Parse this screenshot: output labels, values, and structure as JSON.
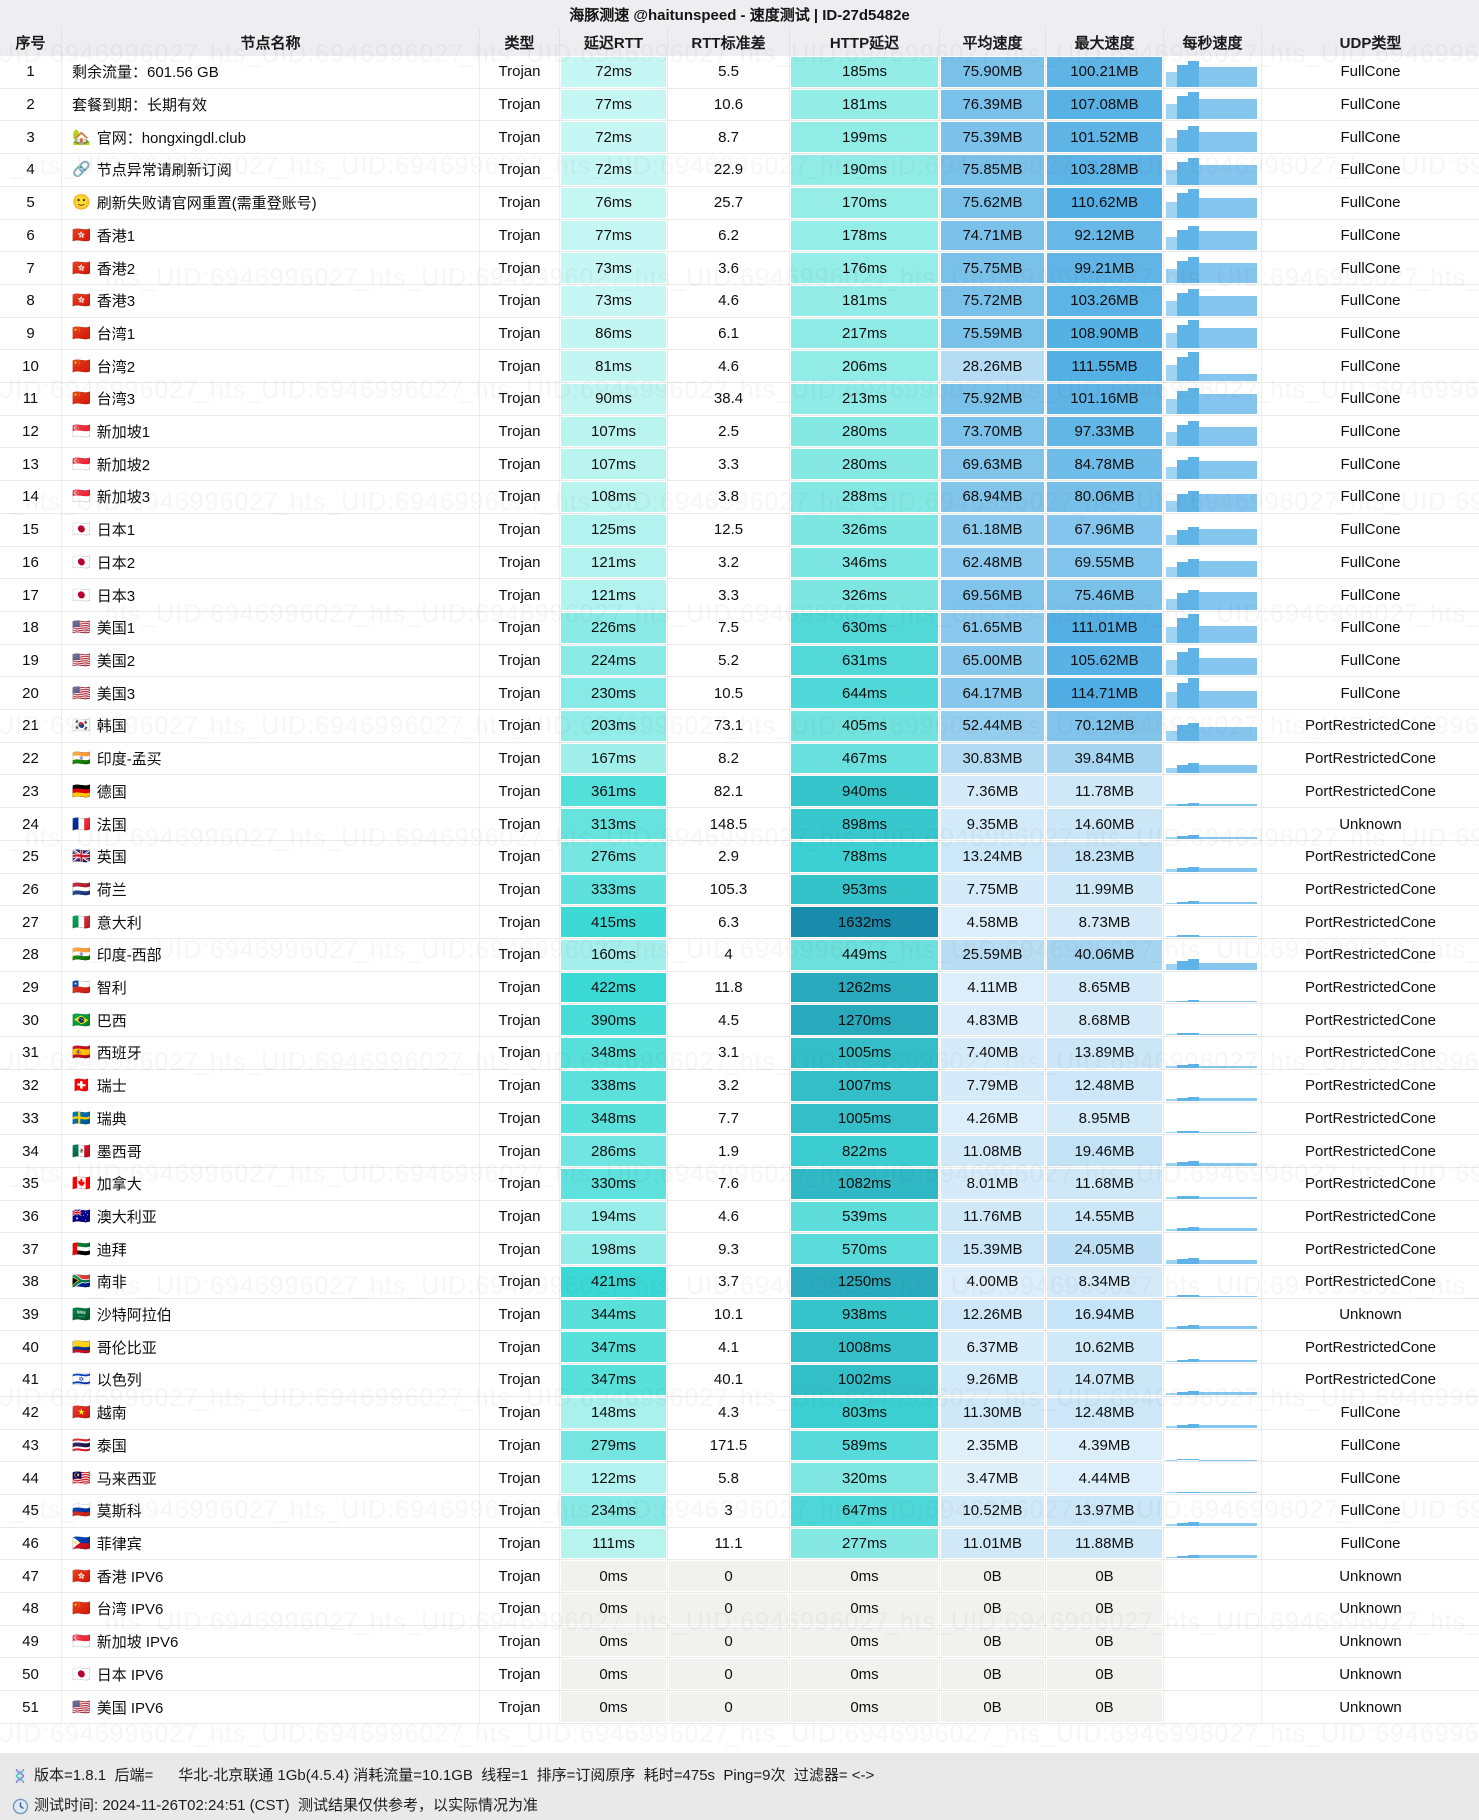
{
  "title": "海豚测速 @haitunspeed - 速度测试 | ID-27d5482e",
  "watermark": {
    "text": "_hts_UID:6946996027"
  },
  "columns": [
    "序号",
    "节点名称",
    "类型",
    "延迟RTT",
    "RTT标准差",
    "HTTP延迟",
    "平均速度",
    "最大速度",
    "每秒速度",
    "UDP类型"
  ],
  "colors": {
    "header_bg": "#eeeef0",
    "footer_bg": "#e9e9ea",
    "rtt_low": "#e4fdfa",
    "rtt_high": "#2fd7d2",
    "http_low": "#aef5ec",
    "http_mid": "#3dd2d3",
    "http_high": "#1786a8",
    "speed_low": "#e7f3fc",
    "speed_high": "#4fade3",
    "bar_main": "#5fb3e6",
    "bar_light": "#9ed3f1",
    "bar_plateau": "#86c6ee",
    "empty_cell": "#f1f1ef"
  },
  "scales": {
    "rtt_max": 450,
    "http_max": 1700,
    "speed_max": 115
  },
  "footer": {
    "line1": "版本=1.8.1  后端=      华北-北京联通 1Gb(4.5.4) 消耗流量=10.1GB  线程=1  排序=订阅原序  耗时=475s  Ping=9次  过滤器= <->",
    "line2": "测试时间: 2024-11-26T02:24:51 (CST)  测试结果仅供参考，以实际情况为准"
  },
  "rows": [
    {
      "no": 1,
      "icon": "",
      "icon_name": "",
      "name": "剩余流量：601.56 GB",
      "type": "Trojan",
      "rtt": 72,
      "std": "5.5",
      "http": 185,
      "avg": 75.9,
      "max": 100.21,
      "udp": "FullCone",
      "bars": [
        0.48,
        0.74,
        0.87,
        0.67
      ]
    },
    {
      "no": 2,
      "icon": "",
      "icon_name": "",
      "name": "套餐到期：长期有效",
      "type": "Trojan",
      "rtt": 77,
      "std": "10.6",
      "http": 181,
      "avg": 76.39,
      "max": 107.08,
      "udp": "FullCone",
      "bars": [
        0.51,
        0.79,
        0.93,
        0.68
      ]
    },
    {
      "no": 3,
      "icon": "🏡",
      "icon_name": "house-icon",
      "name": "官网：hongxingdl.club",
      "type": "Trojan",
      "rtt": 72,
      "std": "8.7",
      "http": 199,
      "avg": 75.39,
      "max": 101.52,
      "udp": "FullCone",
      "bars": [
        0.49,
        0.75,
        0.88,
        0.67
      ]
    },
    {
      "no": 4,
      "icon": "🔗",
      "icon_name": "link-icon",
      "name": "节点异常请刷新订阅",
      "type": "Trojan",
      "rtt": 72,
      "std": "22.9",
      "http": 190,
      "avg": 75.85,
      "max": 103.28,
      "udp": "FullCone",
      "bars": [
        0.49,
        0.76,
        0.9,
        0.67
      ]
    },
    {
      "no": 5,
      "icon": "🙂",
      "icon_name": "smiley-icon",
      "name": "刷新失败请官网重置(需重登账号)",
      "type": "Trojan",
      "rtt": 76,
      "std": "25.7",
      "http": 170,
      "avg": 75.62,
      "max": 110.62,
      "udp": "FullCone",
      "bars": [
        0.53,
        0.82,
        0.96,
        0.67
      ]
    },
    {
      "no": 6,
      "icon": "🇭🇰",
      "icon_name": "flag-icon",
      "name": "香港1",
      "type": "Trojan",
      "rtt": 77,
      "std": "6.2",
      "http": 178,
      "avg": 74.71,
      "max": 92.12,
      "udp": "FullCone",
      "bars": [
        0.44,
        0.68,
        0.8,
        0.66
      ]
    },
    {
      "no": 7,
      "icon": "🇭🇰",
      "icon_name": "flag-icon",
      "name": "香港2",
      "type": "Trojan",
      "rtt": 73,
      "std": "3.6",
      "http": 176,
      "avg": 75.75,
      "max": 99.21,
      "udp": "FullCone",
      "bars": [
        0.47,
        0.73,
        0.86,
        0.67
      ]
    },
    {
      "no": 8,
      "icon": "🇭🇰",
      "icon_name": "flag-icon",
      "name": "香港3",
      "type": "Trojan",
      "rtt": 73,
      "std": "4.6",
      "http": 181,
      "avg": 75.72,
      "max": 103.26,
      "udp": "FullCone",
      "bars": [
        0.49,
        0.76,
        0.9,
        0.67
      ]
    },
    {
      "no": 9,
      "icon": "🇨🇳",
      "icon_name": "flag-icon",
      "name": "台湾1",
      "type": "Trojan",
      "rtt": 86,
      "std": "6.1",
      "http": 217,
      "avg": 75.59,
      "max": 108.9,
      "udp": "FullCone",
      "bars": [
        0.52,
        0.8,
        0.95,
        0.67
      ]
    },
    {
      "no": 10,
      "icon": "🇨🇳",
      "icon_name": "flag-icon",
      "name": "台湾2",
      "type": "Trojan",
      "rtt": 81,
      "std": "4.6",
      "http": 206,
      "avg": 28.26,
      "max": 111.55,
      "udp": "FullCone",
      "bars": [
        0.53,
        0.82,
        0.97,
        0.25
      ]
    },
    {
      "no": 11,
      "icon": "🇨🇳",
      "icon_name": "flag-icon",
      "name": "台湾3",
      "type": "Trojan",
      "rtt": 90,
      "std": "38.4",
      "http": 213,
      "avg": 75.92,
      "max": 101.16,
      "udp": "FullCone",
      "bars": [
        0.48,
        0.75,
        0.88,
        0.67
      ]
    },
    {
      "no": 12,
      "icon": "🇸🇬",
      "icon_name": "flag-icon",
      "name": "新加坡1",
      "type": "Trojan",
      "rtt": 107,
      "std": "2.5",
      "http": 280,
      "avg": 73.7,
      "max": 97.33,
      "udp": "FullCone",
      "bars": [
        0.47,
        0.72,
        0.85,
        0.65
      ]
    },
    {
      "no": 13,
      "icon": "🇸🇬",
      "icon_name": "flag-icon",
      "name": "新加坡2",
      "type": "Trojan",
      "rtt": 107,
      "std": "3.3",
      "http": 280,
      "avg": 69.63,
      "max": 84.78,
      "udp": "FullCone",
      "bars": [
        0.41,
        0.63,
        0.74,
        0.62
      ]
    },
    {
      "no": 14,
      "icon": "🇸🇬",
      "icon_name": "flag-icon",
      "name": "新加坡3",
      "type": "Trojan",
      "rtt": 108,
      "std": "3.8",
      "http": 288,
      "avg": 68.94,
      "max": 80.06,
      "udp": "FullCone",
      "bars": [
        0.38,
        0.59,
        0.7,
        0.61
      ]
    },
    {
      "no": 15,
      "icon": "🇯🇵",
      "icon_name": "flag-icon",
      "name": "日本1",
      "type": "Trojan",
      "rtt": 125,
      "std": "12.5",
      "http": 326,
      "avg": 61.18,
      "max": 67.96,
      "udp": "FullCone",
      "bars": [
        0.32,
        0.5,
        0.59,
        0.54
      ]
    },
    {
      "no": 16,
      "icon": "🇯🇵",
      "icon_name": "flag-icon",
      "name": "日本2",
      "type": "Trojan",
      "rtt": 121,
      "std": "3.2",
      "http": 346,
      "avg": 62.48,
      "max": 69.55,
      "udp": "FullCone",
      "bars": [
        0.33,
        0.51,
        0.6,
        0.55
      ]
    },
    {
      "no": 17,
      "icon": "🇯🇵",
      "icon_name": "flag-icon",
      "name": "日本3",
      "type": "Trojan",
      "rtt": 121,
      "std": "3.3",
      "http": 326,
      "avg": 69.56,
      "max": 75.46,
      "udp": "FullCone",
      "bars": [
        0.36,
        0.56,
        0.66,
        0.62
      ]
    },
    {
      "no": 18,
      "icon": "🇺🇸",
      "icon_name": "flag-icon",
      "name": "美国1",
      "type": "Trojan",
      "rtt": 226,
      "std": "7.5",
      "http": 630,
      "avg": 61.65,
      "max": 111.01,
      "udp": "FullCone",
      "bars": [
        0.53,
        0.82,
        0.97,
        0.55
      ]
    },
    {
      "no": 19,
      "icon": "🇺🇸",
      "icon_name": "flag-icon",
      "name": "美国2",
      "type": "Trojan",
      "rtt": 224,
      "std": "5.2",
      "http": 631,
      "avg": 65.0,
      "max": 105.62,
      "udp": "FullCone",
      "bars": [
        0.51,
        0.78,
        0.92,
        0.58
      ]
    },
    {
      "no": 20,
      "icon": "🇺🇸",
      "icon_name": "flag-icon",
      "name": "美国3",
      "type": "Trojan",
      "rtt": 230,
      "std": "10.5",
      "http": 644,
      "avg": 64.17,
      "max": 114.71,
      "udp": "FullCone",
      "bars": [
        0.55,
        0.85,
        1.0,
        0.57
      ]
    },
    {
      "no": 21,
      "icon": "🇰🇷",
      "icon_name": "flag-icon",
      "name": "韩国",
      "type": "Trojan",
      "rtt": 203,
      "std": "73.1",
      "http": 405,
      "avg": 52.44,
      "max": 70.12,
      "udp": "PortRestrictedCone",
      "bars": [
        0.34,
        0.52,
        0.61,
        0.47
      ]
    },
    {
      "no": 22,
      "icon": "🇮🇳",
      "icon_name": "flag-icon",
      "name": "印度-孟买",
      "type": "Trojan",
      "rtt": 167,
      "std": "8.2",
      "http": 467,
      "avg": 30.83,
      "max": 39.84,
      "udp": "PortRestrictedCone",
      "bars": [
        0.19,
        0.29,
        0.35,
        0.27
      ]
    },
    {
      "no": 23,
      "icon": "🇩🇪",
      "icon_name": "flag-icon",
      "name": "德国",
      "type": "Trojan",
      "rtt": 361,
      "std": "82.1",
      "http": 940,
      "avg": 7.36,
      "max": 11.78,
      "udp": "PortRestrictedCone",
      "bars": [
        0.06,
        0.09,
        0.1,
        0.07
      ]
    },
    {
      "no": 24,
      "icon": "🇫🇷",
      "icon_name": "flag-icon",
      "name": "法国",
      "type": "Trojan",
      "rtt": 313,
      "std": "148.5",
      "http": 898,
      "avg": 9.35,
      "max": 14.6,
      "udp": "Unknown",
      "bars": [
        0.07,
        0.11,
        0.13,
        0.08
      ]
    },
    {
      "no": 25,
      "icon": "🇬🇧",
      "icon_name": "flag-icon",
      "name": "英国",
      "type": "Trojan",
      "rtt": 276,
      "std": "2.9",
      "http": 788,
      "avg": 13.24,
      "max": 18.23,
      "udp": "PortRestrictedCone",
      "bars": [
        0.09,
        0.13,
        0.16,
        0.12
      ]
    },
    {
      "no": 26,
      "icon": "🇳🇱",
      "icon_name": "flag-icon",
      "name": "荷兰",
      "type": "Trojan",
      "rtt": 333,
      "std": "105.3",
      "http": 953,
      "avg": 7.75,
      "max": 11.99,
      "udp": "PortRestrictedCone",
      "bars": [
        0.06,
        0.09,
        0.1,
        0.07
      ]
    },
    {
      "no": 27,
      "icon": "🇮🇹",
      "icon_name": "flag-icon",
      "name": "意大利",
      "type": "Trojan",
      "rtt": 415,
      "std": "6.3",
      "http": 1632,
      "avg": 4.58,
      "max": 8.73,
      "udp": "PortRestrictedCone",
      "bars": [
        0.04,
        0.06,
        0.08,
        0.04
      ]
    },
    {
      "no": 28,
      "icon": "🇮🇳",
      "icon_name": "flag-icon",
      "name": "印度-西部",
      "type": "Trojan",
      "rtt": 160,
      "std": "4",
      "http": 449,
      "avg": 25.59,
      "max": 40.06,
      "udp": "PortRestrictedCone",
      "bars": [
        0.19,
        0.3,
        0.35,
        0.23
      ]
    },
    {
      "no": 29,
      "icon": "🇨🇱",
      "icon_name": "flag-icon",
      "name": "智利",
      "type": "Trojan",
      "rtt": 422,
      "std": "11.8",
      "http": 1262,
      "avg": 4.11,
      "max": 8.65,
      "udp": "PortRestrictedCone",
      "bars": [
        0.04,
        0.06,
        0.08,
        0.04
      ]
    },
    {
      "no": 30,
      "icon": "🇧🇷",
      "icon_name": "flag-icon",
      "name": "巴西",
      "type": "Trojan",
      "rtt": 390,
      "std": "4.5",
      "http": 1270,
      "avg": 4.83,
      "max": 8.68,
      "udp": "PortRestrictedCone",
      "bars": [
        0.04,
        0.06,
        0.08,
        0.04
      ]
    },
    {
      "no": 31,
      "icon": "🇪🇸",
      "icon_name": "flag-icon",
      "name": "西班牙",
      "type": "Trojan",
      "rtt": 348,
      "std": "3.1",
      "http": 1005,
      "avg": 7.4,
      "max": 13.89,
      "udp": "PortRestrictedCone",
      "bars": [
        0.07,
        0.1,
        0.12,
        0.07
      ]
    },
    {
      "no": 32,
      "icon": "🇨🇭",
      "icon_name": "flag-icon",
      "name": "瑞士",
      "type": "Trojan",
      "rtt": 338,
      "std": "3.2",
      "http": 1007,
      "avg": 7.79,
      "max": 12.48,
      "udp": "PortRestrictedCone",
      "bars": [
        0.06,
        0.09,
        0.11,
        0.07
      ]
    },
    {
      "no": 33,
      "icon": "🇸🇪",
      "icon_name": "flag-icon",
      "name": "瑞典",
      "type": "Trojan",
      "rtt": 348,
      "std": "7.7",
      "http": 1005,
      "avg": 4.26,
      "max": 8.95,
      "udp": "PortRestrictedCone",
      "bars": [
        0.04,
        0.07,
        0.08,
        0.04
      ]
    },
    {
      "no": 34,
      "icon": "🇲🇽",
      "icon_name": "flag-icon",
      "name": "墨西哥",
      "type": "Trojan",
      "rtt": 286,
      "std": "1.9",
      "http": 822,
      "avg": 11.08,
      "max": 19.46,
      "udp": "PortRestrictedCone",
      "bars": [
        0.09,
        0.14,
        0.17,
        0.1
      ]
    },
    {
      "no": 35,
      "icon": "🇨🇦",
      "icon_name": "flag-icon",
      "name": "加拿大",
      "type": "Trojan",
      "rtt": 330,
      "std": "7.6",
      "http": 1082,
      "avg": 8.01,
      "max": 11.68,
      "udp": "PortRestrictedCone",
      "bars": [
        0.06,
        0.09,
        0.1,
        0.07
      ]
    },
    {
      "no": 36,
      "icon": "🇦🇺",
      "icon_name": "flag-icon",
      "name": "澳大利亚",
      "type": "Trojan",
      "rtt": 194,
      "std": "4.6",
      "http": 539,
      "avg": 11.76,
      "max": 14.55,
      "udp": "PortRestrictedCone",
      "bars": [
        0.07,
        0.11,
        0.13,
        0.1
      ]
    },
    {
      "no": 37,
      "icon": "🇦🇪",
      "icon_name": "flag-icon",
      "name": "迪拜",
      "type": "Trojan",
      "rtt": 198,
      "std": "9.3",
      "http": 570,
      "avg": 15.39,
      "max": 24.05,
      "udp": "PortRestrictedCone",
      "bars": [
        0.12,
        0.18,
        0.21,
        0.14
      ]
    },
    {
      "no": 38,
      "icon": "🇿🇦",
      "icon_name": "flag-icon",
      "name": "南非",
      "type": "Trojan",
      "rtt": 421,
      "std": "3.7",
      "http": 1250,
      "avg": 4.0,
      "max": 8.34,
      "udp": "PortRestrictedCone",
      "bars": [
        0.04,
        0.06,
        0.07,
        0.04
      ]
    },
    {
      "no": 39,
      "icon": "🇸🇦",
      "icon_name": "flag-icon",
      "name": "沙特阿拉伯",
      "type": "Trojan",
      "rtt": 344,
      "std": "10.1",
      "http": 938,
      "avg": 12.26,
      "max": 16.94,
      "udp": "Unknown",
      "bars": [
        0.08,
        0.13,
        0.15,
        0.11
      ]
    },
    {
      "no": 40,
      "icon": "🇨🇴",
      "icon_name": "flag-icon",
      "name": "哥伦比亚",
      "type": "Trojan",
      "rtt": 347,
      "std": "4.1",
      "http": 1008,
      "avg": 6.37,
      "max": 10.62,
      "udp": "PortRestrictedCone",
      "bars": [
        0.05,
        0.08,
        0.09,
        0.06
      ]
    },
    {
      "no": 41,
      "icon": "🇮🇱",
      "icon_name": "flag-icon",
      "name": "以色列",
      "type": "Trojan",
      "rtt": 347,
      "std": "40.1",
      "http": 1002,
      "avg": 9.26,
      "max": 14.07,
      "udp": "PortRestrictedCone",
      "bars": [
        0.07,
        0.1,
        0.12,
        0.08
      ]
    },
    {
      "no": 42,
      "icon": "🇻🇳",
      "icon_name": "flag-icon",
      "name": "越南",
      "type": "Trojan",
      "rtt": 148,
      "std": "4.3",
      "http": 803,
      "avg": 11.3,
      "max": 12.48,
      "udp": "FullCone",
      "bars": [
        0.06,
        0.09,
        0.11,
        0.1
      ]
    },
    {
      "no": 43,
      "icon": "🇹🇭",
      "icon_name": "flag-icon",
      "name": "泰国",
      "type": "Trojan",
      "rtt": 279,
      "std": "171.5",
      "http": 589,
      "avg": 2.35,
      "max": 4.39,
      "udp": "FullCone",
      "bars": [
        0.02,
        0.03,
        0.04,
        0.02
      ]
    },
    {
      "no": 44,
      "icon": "🇲🇾",
      "icon_name": "flag-icon",
      "name": "马来西亚",
      "type": "Trojan",
      "rtt": 122,
      "std": "5.8",
      "http": 320,
      "avg": 3.47,
      "max": 4.44,
      "udp": "FullCone",
      "bars": [
        0.02,
        0.03,
        0.04,
        0.03
      ]
    },
    {
      "no": 45,
      "icon": "🇷🇺",
      "icon_name": "flag-icon",
      "name": "莫斯科",
      "type": "Trojan",
      "rtt": 234,
      "std": "3",
      "http": 647,
      "avg": 10.52,
      "max": 13.97,
      "udp": "FullCone",
      "bars": [
        0.07,
        0.1,
        0.12,
        0.09
      ]
    },
    {
      "no": 46,
      "icon": "🇵🇭",
      "icon_name": "flag-icon",
      "name": "菲律宾",
      "type": "Trojan",
      "rtt": 111,
      "std": "11.1",
      "http": 277,
      "avg": 11.01,
      "max": 11.88,
      "udp": "FullCone",
      "bars": [
        0.06,
        0.09,
        0.1,
        0.1
      ]
    },
    {
      "no": 47,
      "icon": "🇭🇰",
      "icon_name": "flag-icon",
      "name": "香港 IPV6",
      "type": "Trojan",
      "rtt": 0,
      "std": "0",
      "http": 0,
      "avg": 0,
      "max": 0,
      "udp": "Unknown",
      "bars": []
    },
    {
      "no": 48,
      "icon": "🇨🇳",
      "icon_name": "flag-icon",
      "name": "台湾 IPV6",
      "type": "Trojan",
      "rtt": 0,
      "std": "0",
      "http": 0,
      "avg": 0,
      "max": 0,
      "udp": "Unknown",
      "bars": []
    },
    {
      "no": 49,
      "icon": "🇸🇬",
      "icon_name": "flag-icon",
      "name": "新加坡 IPV6",
      "type": "Trojan",
      "rtt": 0,
      "std": "0",
      "http": 0,
      "avg": 0,
      "max": 0,
      "udp": "Unknown",
      "bars": []
    },
    {
      "no": 50,
      "icon": "🇯🇵",
      "icon_name": "flag-icon",
      "name": "日本 IPV6",
      "type": "Trojan",
      "rtt": 0,
      "std": "0",
      "http": 0,
      "avg": 0,
      "max": 0,
      "udp": "Unknown",
      "bars": []
    },
    {
      "no": 51,
      "icon": "🇺🇸",
      "icon_name": "flag-icon",
      "name": "美国 IPV6",
      "type": "Trojan",
      "rtt": 0,
      "std": "0",
      "http": 0,
      "avg": 0,
      "max": 0,
      "udp": "Unknown",
      "bars": []
    }
  ]
}
